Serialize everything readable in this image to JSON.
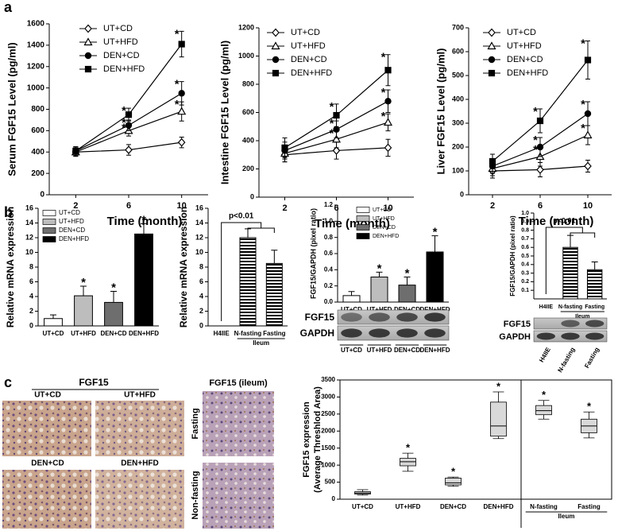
{
  "panel_labels": [
    "a",
    "b",
    "c"
  ],
  "micrographs": {
    "title": "FGF15",
    "panels": [
      "UT+CD",
      "UT+HFD",
      "DEN+CD",
      "DEN+HFD"
    ],
    "ileum_title": "FGF15 (ileum)",
    "ileum_panels": [
      "Fasting",
      "Non-fasting"
    ]
  },
  "chart_data": [
    {
      "type": "line",
      "ylabel": "Serum FGF15 Level (pg/ml)",
      "xlabel": "Time (month)",
      "x": [
        2,
        6,
        10
      ],
      "xlim": [
        0,
        12
      ],
      "xticks": [
        2,
        6,
        10
      ],
      "ylim": [
        0,
        1600
      ],
      "yticks": [
        0,
        200,
        400,
        600,
        800,
        1000,
        1200,
        1400,
        1600
      ],
      "legend": "upper left",
      "series": [
        {
          "name": "UT+CD",
          "marker": "diamond",
          "filled": false,
          "color": "#000000",
          "values": [
            400,
            420,
            490
          ],
          "errors": [
            40,
            50,
            50
          ]
        },
        {
          "name": "UT+HFD",
          "marker": "triangle",
          "filled": false,
          "color": "#000000",
          "values": [
            400,
            600,
            780
          ],
          "errors": [
            40,
            50,
            90
          ],
          "stars": [
            null,
            "*",
            "*"
          ]
        },
        {
          "name": "DEN+CD",
          "marker": "circle",
          "filled": true,
          "color": "#000000",
          "values": [
            410,
            650,
            950
          ],
          "errors": [
            40,
            50,
            110
          ],
          "stars": [
            null,
            "*",
            "*"
          ]
        },
        {
          "name": "DEN+HFD",
          "marker": "square",
          "filled": true,
          "color": "#000000",
          "values": [
            410,
            750,
            1410
          ],
          "errors": [
            40,
            60,
            120
          ],
          "stars": [
            null,
            "*",
            "*"
          ]
        }
      ]
    },
    {
      "type": "line",
      "ylabel": "Intestine FGF15 Level (pg/ml)",
      "xlabel": "Time (month)",
      "x": [
        2,
        6,
        10
      ],
      "xlim": [
        0,
        12
      ],
      "xticks": [
        2,
        6,
        10
      ],
      "ylim": [
        0,
        1200
      ],
      "yticks": [
        0,
        200,
        400,
        600,
        800,
        1000,
        1200
      ],
      "legend": "upper left",
      "series": [
        {
          "name": "UT+CD",
          "marker": "diamond",
          "filled": false,
          "color": "#000000",
          "values": [
            300,
            330,
            350
          ],
          "errors": [
            50,
            60,
            60
          ]
        },
        {
          "name": "UT+HFD",
          "marker": "triangle",
          "filled": false,
          "color": "#000000",
          "values": [
            310,
            410,
            530
          ],
          "errors": [
            60,
            60,
            60
          ],
          "stars": [
            null,
            "*",
            "*"
          ]
        },
        {
          "name": "DEN+CD",
          "marker": "circle",
          "filled": true,
          "color": "#000000",
          "values": [
            330,
            480,
            680
          ],
          "errors": [
            60,
            60,
            80
          ],
          "stars": [
            null,
            "*",
            "*"
          ]
        },
        {
          "name": "DEN+HFD",
          "marker": "square",
          "filled": true,
          "color": "#000000",
          "values": [
            350,
            580,
            900
          ],
          "errors": [
            70,
            80,
            110
          ],
          "stars": [
            null,
            "*",
            "*"
          ]
        }
      ]
    },
    {
      "type": "line",
      "ylabel": "Liver FGF15 Level (pg/ml)",
      "xlabel": "Time (month)",
      "x": [
        2,
        6,
        10
      ],
      "xlim": [
        0,
        12
      ],
      "xticks": [
        2,
        6,
        10
      ],
      "ylim": [
        0,
        700
      ],
      "yticks": [
        0,
        100,
        200,
        300,
        400,
        500,
        600,
        700
      ],
      "legend": "upper left",
      "series": [
        {
          "name": "UT+CD",
          "marker": "diamond",
          "filled": false,
          "color": "#000000",
          "values": [
            100,
            105,
            120
          ],
          "errors": [
            30,
            30,
            25
          ]
        },
        {
          "name": "UT+HFD",
          "marker": "triangle",
          "filled": false,
          "color": "#000000",
          "values": [
            110,
            160,
            250
          ],
          "errors": [
            30,
            40,
            40
          ],
          "stars": [
            null,
            "*",
            "*"
          ]
        },
        {
          "name": "DEN+CD",
          "marker": "circle",
          "filled": true,
          "color": "#000000",
          "values": [
            120,
            200,
            340
          ],
          "errors": [
            30,
            40,
            50
          ],
          "stars": [
            null,
            "*",
            "*"
          ]
        },
        {
          "name": "DEN+HFD",
          "marker": "square",
          "filled": true,
          "color": "#000000",
          "values": [
            140,
            310,
            565
          ],
          "errors": [
            30,
            50,
            80
          ],
          "stars": [
            null,
            "*",
            "*"
          ]
        }
      ]
    },
    {
      "type": "bar",
      "ylabel": "Relative mRNA expression",
      "categories": [
        "UT+CD",
        "UT+HFD",
        "DEN+CD",
        "DEN+HFD"
      ],
      "values": [
        1.0,
        4.1,
        3.2,
        12.5
      ],
      "errors": [
        0.5,
        1.3,
        1.5,
        1.4
      ],
      "stars": [
        null,
        "*",
        "*",
        "*"
      ],
      "colors": [
        "#ffffff",
        "#bdbdbd",
        "#6e6e6e",
        "#000000"
      ],
      "legend": "upper left",
      "ylim": [
        0,
        16
      ],
      "yticks": [
        0,
        2,
        4,
        6,
        8,
        10,
        12,
        14,
        16
      ]
    },
    {
      "type": "bar",
      "ylabel": "Relative mRNA expression",
      "categories": [
        "H4IIE",
        "N-fasting",
        "Fasting"
      ],
      "values": [
        0,
        12,
        8.5
      ],
      "errors": [
        null,
        1.2,
        1.8
      ],
      "pattern": "horizontal-stripes",
      "annotation": "p<0.01",
      "group_label": "Ileum",
      "ylim": [
        0,
        16
      ],
      "yticks": [
        0,
        2,
        4,
        6,
        8,
        10,
        12,
        14,
        16
      ]
    },
    {
      "type": "bar",
      "ylabel": "FGF15/GAPDH (pixel ratio)",
      "categories": [
        "UT+CD",
        "UT+HFD",
        "DEN+CD",
        "DEN+HFD"
      ],
      "values": [
        0.08,
        0.31,
        0.21,
        0.62
      ],
      "errors": [
        0.05,
        0.06,
        0.1,
        0.2
      ],
      "stars": [
        null,
        "*",
        "*",
        "*"
      ],
      "colors": [
        "#ffffff",
        "#bdbdbd",
        "#6e6e6e",
        "#000000"
      ],
      "legend": "upper left",
      "blot_labels": [
        "FGF15",
        "GAPDH"
      ],
      "ylim": [
        0,
        1.2
      ],
      "yticks": [
        {
          "value": 0,
          "label": "0.0"
        },
        0.2,
        0.4,
        0.6,
        0.8,
        {
          "value": 1,
          "label": "1.0"
        },
        1.2
      ]
    },
    {
      "type": "bar",
      "ylabel": "FGF15/GAPDH (pixel ratio)",
      "categories": [
        "H4IIE",
        "N-fasting",
        "Fasting"
      ],
      "values": [
        0,
        0.6,
        0.34
      ],
      "errors": [
        null,
        0.14,
        0.09
      ],
      "pattern": "horizontal-stripes",
      "annotation": "p<0.01",
      "group_label": "Ileum",
      "blot_labels": [
        "FGF15",
        "GAPDH"
      ],
      "ylim": [
        0,
        1
      ],
      "yticks": [
        0.1,
        0.2,
        0.3,
        0.4,
        0.5,
        0.6,
        0.7,
        0.8,
        0.9,
        {
          "value": 1,
          "label": "1.0"
        }
      ]
    },
    {
      "type": "box",
      "ylabel": [
        "FGF15 expression",
        "(Average Threshlod Area)"
      ],
      "categories": [
        "UT+CD",
        "UT+HFD",
        "DEN+CD",
        "DEN+HFD",
        "N-fasting",
        "Fasting"
      ],
      "group_label": "Ileum",
      "values": [
        [
          120,
          150,
          180,
          220,
          280
        ],
        [
          820,
          980,
          1100,
          1200,
          1350
        ],
        [
          380,
          420,
          480,
          620,
          650
        ],
        [
          1780,
          1850,
          2150,
          2850,
          3150
        ],
        [
          2350,
          2480,
          2600,
          2750,
          2900
        ],
        [
          1800,
          1950,
          2150,
          2350,
          2560
        ]
      ],
      "stars": [
        null,
        "*",
        "*",
        "*",
        "*",
        "*"
      ],
      "color": "#d9d9d9",
      "ylim": [
        0,
        3500
      ],
      "yticks": [
        0,
        500,
        1000,
        1500,
        2000,
        2500,
        3000,
        3500
      ]
    }
  ]
}
